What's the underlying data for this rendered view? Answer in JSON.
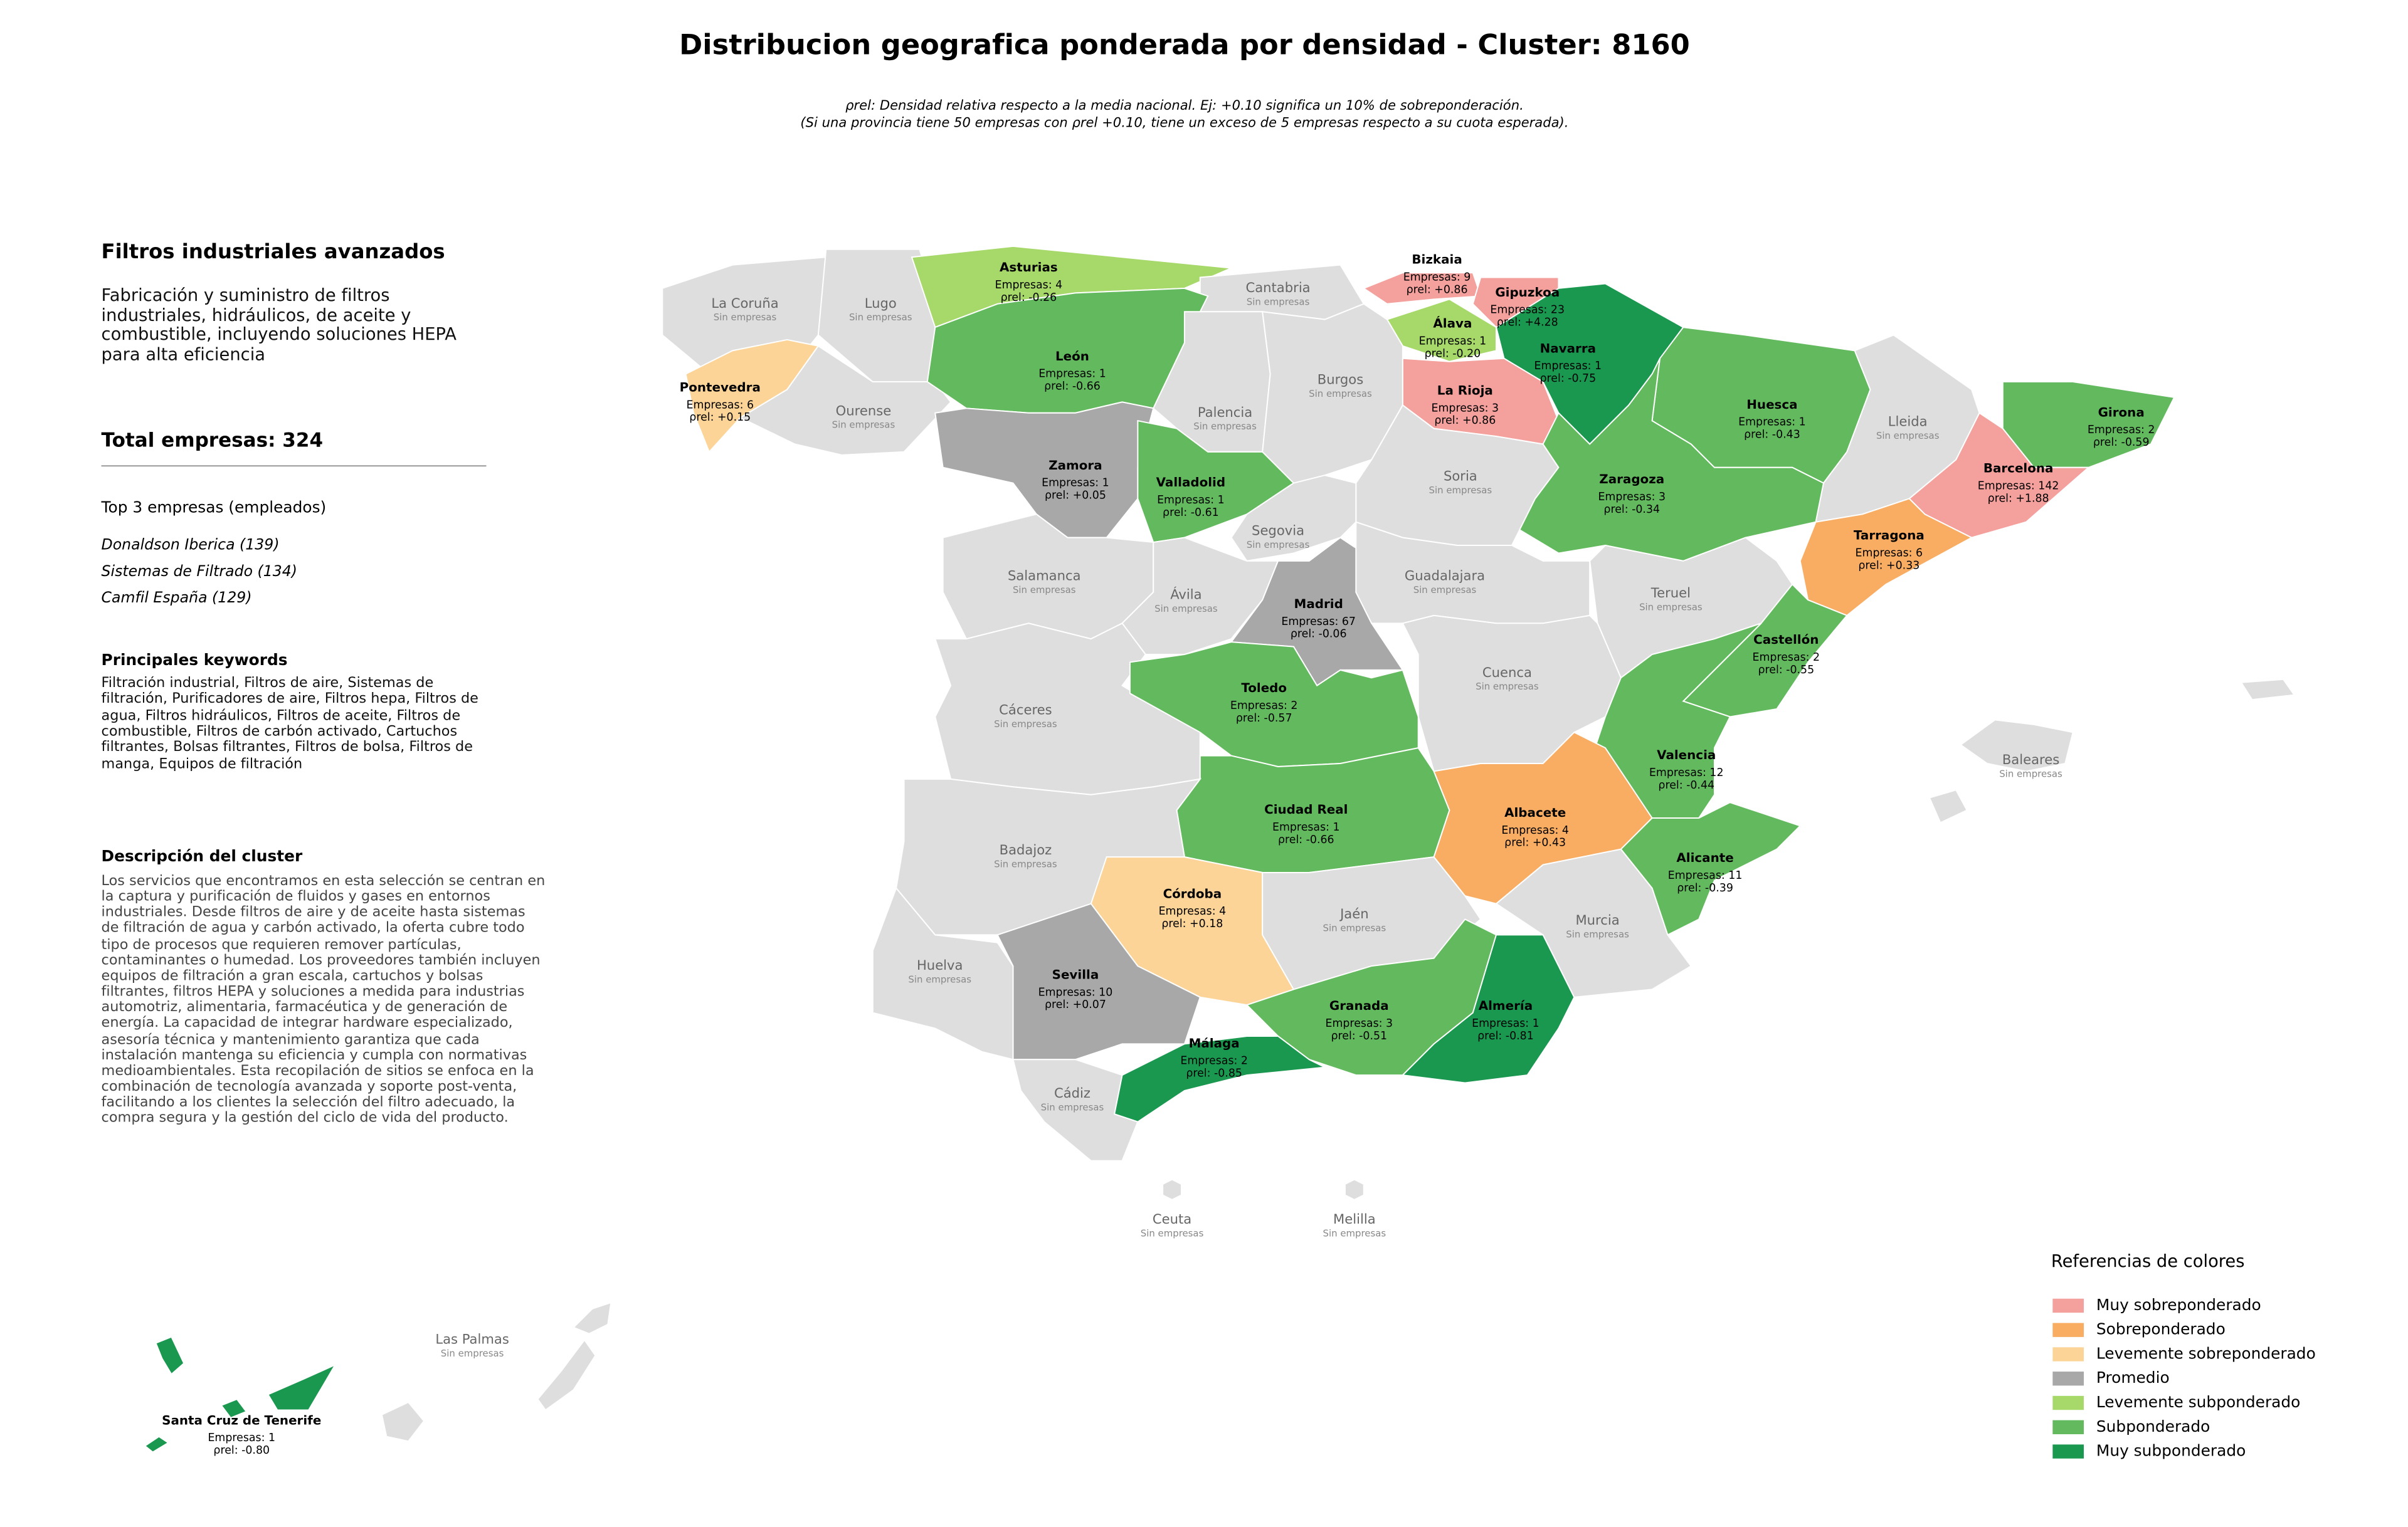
{
  "header": {
    "title": "Distribucion geografica ponderada por densidad - Cluster: 8160",
    "subtitle": [
      "ρrel: Densidad relativa respecto a la media nacional. Ej: +0.10 significa un 10% de sobreponderación.",
      "(Si una provincia tiene 50 empresas con ρrel +0.10, tiene un exceso de 5 empresas respecto a su cuota esperada)."
    ]
  },
  "panel": {
    "heading": "Filtros industriales avanzados",
    "description": "Fabricación y suministro de filtros industriales, hidráulicos, de aceite y combustible, incluyendo soluciones HEPA para alta eficiencia",
    "total": "Total empresas: 324",
    "top_heading": "Top 3 empresas (empleados)",
    "top_companies": [
      "Donaldson Iberica (139)",
      "Sistemas de Filtrado (134)",
      "Camfil España (129)"
    ],
    "keywords_heading": "Principales keywords",
    "keywords": "Filtración industrial, Filtros de aire, Sistemas de filtración, Purificadores de aire, Filtros hepa, Filtros de agua, Filtros hidráulicos, Filtros de aceite, Filtros de combustible, Filtros de carbón activado, Cartuchos filtrantes, Bolsas filtrantes, Filtros de bolsa, Filtros de manga, Equipos de filtración",
    "cluster_heading": "Descripción del cluster",
    "cluster_text": "Los servicios que encontramos en esta selección se centran en la captura y purificación de fluidos y gases en entornos industriales. Desde filtros de aire y de aceite hasta sistemas de filtración de agua y carbón activado, la oferta cubre todo tipo de procesos que requieren remover partículas, contaminantes o humedad. Los proveedores también incluyen equipos de filtración a gran escala, cartuchos y bolsas filtrantes, filtros HEPA y soluciones a medida para industrias automotriz, alimentaria, farmacéutica y de generación de energía. La capacidad de integrar hardware especializado, asesoría técnica y mantenimiento garantiza que cada instalación mantenga su eficiencia y cumpla con normativas medioambientales. Esta recopilación de sitios se enfoca en la combinación de tecnología avanzada y soporte post-venta, facilitando a los clientes la selección del filtro adecuado, la compra segura y la gestión del ciclo de vida del producto."
  },
  "map": {
    "empty_color": "#dedede",
    "provinces": [
      {
        "name": "La Coruña",
        "status": "Sin empresas"
      },
      {
        "name": "Lugo",
        "status": "Sin empresas"
      },
      {
        "name": "Asturias",
        "companies": "Empresas: 4",
        "rho": "ρrel: -0.26",
        "category": "Levemente subponderado"
      },
      {
        "name": "Cantabria",
        "status": "Sin empresas"
      },
      {
        "name": "Bizkaia",
        "companies": "Empresas: 9",
        "rho": "ρrel: +0.86",
        "category": "Muy sobreponderado"
      },
      {
        "name": "Gipuzkoa",
        "companies": "Empresas: 23",
        "rho": "ρrel: +4.28",
        "category": "Muy sobreponderado"
      },
      {
        "name": "Álava",
        "companies": "Empresas: 1",
        "rho": "ρrel: -0.20",
        "category": "Levemente subponderado"
      },
      {
        "name": "Navarra",
        "companies": "Empresas: 1",
        "rho": "ρrel: -0.75",
        "category": "Muy subponderado"
      },
      {
        "name": "Pontevedra",
        "companies": "Empresas: 6",
        "rho": "ρrel: +0.15",
        "category": "Levemente sobreponderado"
      },
      {
        "name": "Ourense",
        "status": "Sin empresas"
      },
      {
        "name": "León",
        "companies": "Empresas: 1",
        "rho": "ρrel: -0.66",
        "category": "Subponderado"
      },
      {
        "name": "Palencia",
        "status": "Sin empresas"
      },
      {
        "name": "Burgos",
        "status": "Sin empresas"
      },
      {
        "name": "La Rioja",
        "companies": "Empresas: 3",
        "rho": "ρrel: +0.86",
        "category": "Muy sobreponderado"
      },
      {
        "name": "Huesca",
        "companies": "Empresas: 1",
        "rho": "ρrel: -0.43",
        "category": "Subponderado"
      },
      {
        "name": "Lleida",
        "status": "Sin empresas"
      },
      {
        "name": "Girona",
        "companies": "Empresas: 2",
        "rho": "ρrel: -0.59",
        "category": "Subponderado"
      },
      {
        "name": "Barcelona",
        "companies": "Empresas: 142",
        "rho": "ρrel: +1.88",
        "category": "Muy sobreponderado"
      },
      {
        "name": "Zamora",
        "companies": "Empresas: 1",
        "rho": "ρrel: +0.05",
        "category": "Promedio"
      },
      {
        "name": "Valladolid",
        "companies": "Empresas: 1",
        "rho": "ρrel: -0.61",
        "category": "Subponderado"
      },
      {
        "name": "Soria",
        "status": "Sin empresas"
      },
      {
        "name": "Zaragoza",
        "companies": "Empresas: 3",
        "rho": "ρrel: -0.34",
        "category": "Subponderado"
      },
      {
        "name": "Tarragona",
        "companies": "Empresas: 6",
        "rho": "ρrel: +0.33",
        "category": "Sobreponderado"
      },
      {
        "name": "Segovia",
        "status": "Sin empresas"
      },
      {
        "name": "Salamanca",
        "status": "Sin empresas"
      },
      {
        "name": "Ávila",
        "status": "Sin empresas"
      },
      {
        "name": "Madrid",
        "companies": "Empresas: 67",
        "rho": "ρrel: -0.06",
        "category": "Promedio"
      },
      {
        "name": "Guadalajara",
        "status": "Sin empresas"
      },
      {
        "name": "Teruel",
        "status": "Sin empresas"
      },
      {
        "name": "Castellón",
        "companies": "Empresas: 2",
        "rho": "ρrel: -0.55",
        "category": "Subponderado"
      },
      {
        "name": "Cáceres",
        "status": "Sin empresas"
      },
      {
        "name": "Toledo",
        "companies": "Empresas: 2",
        "rho": "ρrel: -0.57",
        "category": "Subponderado"
      },
      {
        "name": "Cuenca",
        "status": "Sin empresas"
      },
      {
        "name": "Valencia",
        "companies": "Empresas: 12",
        "rho": "ρrel: -0.44",
        "category": "Subponderado"
      },
      {
        "name": "Ciudad Real",
        "companies": "Empresas: 1",
        "rho": "ρrel: -0.66",
        "category": "Subponderado"
      },
      {
        "name": "Albacete",
        "companies": "Empresas: 4",
        "rho": "ρrel: +0.43",
        "category": "Sobreponderado"
      },
      {
        "name": "Badajoz",
        "status": "Sin empresas"
      },
      {
        "name": "Alicante",
        "companies": "Empresas: 11",
        "rho": "ρrel: -0.39",
        "category": "Subponderado"
      },
      {
        "name": "Córdoba",
        "companies": "Empresas: 4",
        "rho": "ρrel: +0.18",
        "category": "Levemente sobreponderado"
      },
      {
        "name": "Jaén",
        "status": "Sin empresas"
      },
      {
        "name": "Murcia",
        "status": "Sin empresas"
      },
      {
        "name": "Huelva",
        "status": "Sin empresas"
      },
      {
        "name": "Sevilla",
        "companies": "Empresas: 10",
        "rho": "ρrel: +0.07",
        "category": "Promedio"
      },
      {
        "name": "Granada",
        "companies": "Empresas: 3",
        "rho": "ρrel: -0.51",
        "category": "Subponderado"
      },
      {
        "name": "Almería",
        "companies": "Empresas: 1",
        "rho": "ρrel: -0.81",
        "category": "Muy subponderado"
      },
      {
        "name": "Málaga",
        "companies": "Empresas: 2",
        "rho": "ρrel: -0.85",
        "category": "Muy subponderado"
      },
      {
        "name": "Cádiz",
        "status": "Sin empresas"
      },
      {
        "name": "Baleares",
        "status": "Sin empresas"
      },
      {
        "name": "Ceuta",
        "status": "Sin empresas"
      },
      {
        "name": "Melilla",
        "status": "Sin empresas"
      },
      {
        "name": "Las Palmas",
        "status": "Sin empresas"
      },
      {
        "name": "Santa Cruz de Tenerife",
        "companies": "Empresas: 1",
        "rho": "ρrel: -0.80",
        "category": "Muy subponderado"
      }
    ]
  },
  "legend": {
    "title": "Referencias de colores",
    "items": [
      {
        "name": "Muy sobreponderado",
        "color": "#f4a09c"
      },
      {
        "name": "Sobreponderado",
        "color": "#f8ad63"
      },
      {
        "name": "Levemente sobreponderado",
        "color": "#fdd497"
      },
      {
        "name": "Promedio",
        "color": "#a8a8a8"
      },
      {
        "name": "Levemente subponderado",
        "color": "#a6d96a"
      },
      {
        "name": "Subponderado",
        "color": "#63ba5e"
      },
      {
        "name": "Muy subponderado",
        "color": "#1a9850"
      }
    ]
  }
}
